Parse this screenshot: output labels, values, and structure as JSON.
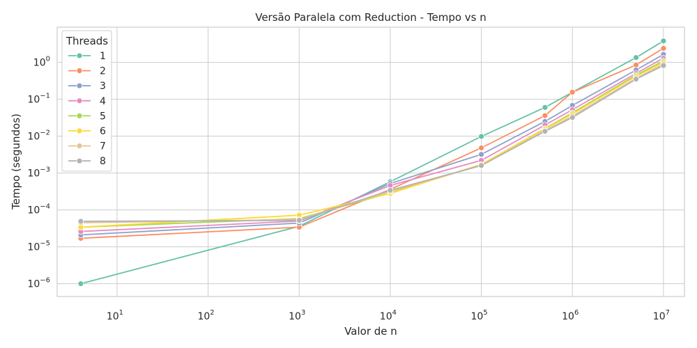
{
  "chart_data": {
    "type": "line",
    "title": "Versão Paralela com Reduction - Tempo vs n",
    "xlabel": "Valor de n",
    "ylabel": "Tempo (segundos)",
    "xscale": "log",
    "yscale": "log",
    "xlim": [
      2.2,
      17000000
    ],
    "ylim": [
      4.5e-07,
      9
    ],
    "x_ticks": [
      {
        "base": "10",
        "exp": "1",
        "value": 10
      },
      {
        "base": "10",
        "exp": "2",
        "value": 100
      },
      {
        "base": "10",
        "exp": "3",
        "value": 1000
      },
      {
        "base": "10",
        "exp": "4",
        "value": 10000
      },
      {
        "base": "10",
        "exp": "5",
        "value": 100000
      },
      {
        "base": "10",
        "exp": "6",
        "value": 1000000
      },
      {
        "base": "10",
        "exp": "7",
        "value": 10000000
      }
    ],
    "y_ticks": [
      {
        "base": "10",
        "exp": "−6",
        "value": 1e-06
      },
      {
        "base": "10",
        "exp": "−5",
        "value": 1e-05
      },
      {
        "base": "10",
        "exp": "−4",
        "value": 0.0001
      },
      {
        "base": "10",
        "exp": "−3",
        "value": 0.001
      },
      {
        "base": "10",
        "exp": "−2",
        "value": 0.01
      },
      {
        "base": "10",
        "exp": "−1",
        "value": 0.1
      },
      {
        "base": "10",
        "exp": "0",
        "value": 1
      }
    ],
    "grid": true,
    "legend": {
      "title": "Threads",
      "placement": "top-left"
    },
    "x": [
      4,
      1000,
      10000,
      100000,
      500000,
      1000000,
      5000000,
      10000000
    ],
    "series": [
      {
        "name": "1",
        "color": "#66c2a5",
        "values": [
          1e-06,
          3.6e-05,
          0.00058,
          0.0098,
          0.06,
          0.155,
          1.35,
          3.8
        ]
      },
      {
        "name": "2",
        "color": "#fc8d62",
        "values": [
          1.7e-05,
          3.4e-05,
          0.00036,
          0.0048,
          0.036,
          0.155,
          0.85,
          2.4
        ]
      },
      {
        "name": "3",
        "color": "#8da0cb",
        "values": [
          2.1e-05,
          4.4e-05,
          0.00052,
          0.0032,
          0.025,
          0.068,
          0.62,
          1.65
        ]
      },
      {
        "name": "4",
        "color": "#e78ac3",
        "values": [
          2.6e-05,
          5e-05,
          0.00046,
          0.0022,
          0.02,
          0.052,
          0.5,
          1.3
        ]
      },
      {
        "name": "5",
        "color": "#a6d854",
        "values": [
          3.4e-05,
          5.8e-05,
          0.00029,
          0.0017,
          0.016,
          0.043,
          0.45,
          1.1
        ]
      },
      {
        "name": "6",
        "color": "#ffd92f",
        "values": [
          3.4e-05,
          7.2e-05,
          0.00028,
          0.0017,
          0.0155,
          0.04,
          0.42,
          1.0
        ]
      },
      {
        "name": "7",
        "color": "#e5c494",
        "values": [
          4.5e-05,
          5.5e-05,
          0.00032,
          0.0016,
          0.014,
          0.035,
          0.37,
          0.9
        ]
      },
      {
        "name": "8",
        "color": "#b3b3b3",
        "values": [
          4.9e-05,
          5.2e-05,
          0.00034,
          0.0016,
          0.0135,
          0.032,
          0.35,
          0.82
        ]
      }
    ]
  }
}
